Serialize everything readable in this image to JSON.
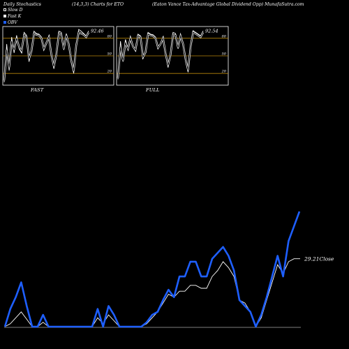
{
  "header": {
    "left": "Daily Stochastics",
    "middle": "(14,3,3) Charts for ETO",
    "right": "(Eaton Vance Tax-Advantage Global Dividend Opp) MunafaSutra.com"
  },
  "legend": [
    {
      "label": "Slow D",
      "color": "#ffffff",
      "style": "hollow"
    },
    {
      "label": "Fast K",
      "color": "#ffffff",
      "style": "solid"
    },
    {
      "label": "OBV",
      "color": "#1e5fff",
      "style": "solid"
    }
  ],
  "colors": {
    "background": "#000000",
    "obv": "#1e5fff",
    "close": "#ffffff",
    "guide": "#b8860b"
  },
  "chart_data": [
    {
      "type": "line",
      "name": "FAST",
      "title": "FAST",
      "last_value": "92.46",
      "ylim": [
        0,
        100
      ],
      "levels": [
        20,
        50,
        80
      ],
      "level_labels": [
        "20",
        "50",
        "80"
      ],
      "series": [
        {
          "name": "Fast K",
          "values": [
            5,
            70,
            25,
            82,
            55,
            85,
            62,
            55,
            90,
            85,
            40,
            60,
            92,
            88,
            87,
            82,
            60,
            70,
            85,
            50,
            28,
            55,
            92,
            90,
            60,
            88,
            72,
            38,
            20,
            70,
            95,
            92,
            88,
            84,
            92.46
          ]
        },
        {
          "name": "Slow D",
          "values": [
            8,
            60,
            30,
            75,
            60,
            80,
            65,
            58,
            85,
            82,
            45,
            58,
            88,
            86,
            85,
            80,
            62,
            72,
            82,
            52,
            32,
            52,
            88,
            86,
            62,
            85,
            70,
            42,
            24,
            68,
            90,
            88,
            86,
            82,
            90
          ]
        }
      ]
    },
    {
      "type": "line",
      "name": "FULL",
      "title": "FULL",
      "last_value": "92.54",
      "ylim": [
        0,
        100
      ],
      "levels": [
        20,
        50,
        80
      ],
      "level_labels": [
        "20",
        "50",
        "80"
      ],
      "series": [
        {
          "name": "Fast K",
          "values": [
            10,
            75,
            40,
            78,
            60,
            83,
            65,
            58,
            87,
            84,
            45,
            58,
            90,
            87,
            86,
            82,
            62,
            70,
            83,
            52,
            30,
            55,
            90,
            88,
            62,
            86,
            72,
            40,
            22,
            68,
            93,
            90,
            87,
            84,
            92.54
          ]
        },
        {
          "name": "Slow D",
          "values": [
            12,
            65,
            42,
            72,
            62,
            80,
            66,
            60,
            84,
            82,
            48,
            56,
            87,
            85,
            84,
            80,
            64,
            70,
            80,
            54,
            34,
            52,
            86,
            85,
            64,
            84,
            70,
            44,
            26,
            66,
            90,
            88,
            85,
            82,
            90
          ]
        }
      ]
    },
    {
      "type": "line",
      "name": "OBV",
      "close_label": "29.21Close",
      "series": [
        {
          "name": "OBV",
          "values": [
            0,
            12,
            20,
            30,
            14,
            0,
            0,
            8,
            0,
            0,
            0,
            0,
            0,
            0,
            0,
            0,
            0,
            12,
            0,
            14,
            8,
            0,
            0,
            0,
            0,
            0,
            3,
            8,
            10,
            18,
            25,
            20,
            34,
            34,
            44,
            44,
            34,
            34,
            46,
            50,
            54,
            48,
            38,
            18,
            14,
            10,
            0,
            8,
            20,
            34,
            48,
            34,
            58,
            68,
            78
          ]
        },
        {
          "name": "Close",
          "values": [
            0,
            2,
            6,
            10,
            5,
            0,
            0,
            3,
            0,
            0,
            0,
            0,
            0,
            0,
            0,
            0,
            0,
            6,
            2,
            8,
            4,
            0,
            0,
            0,
            0,
            0,
            2,
            6,
            10,
            16,
            22,
            20,
            24,
            24,
            28,
            28,
            26,
            26,
            34,
            38,
            44,
            40,
            34,
            18,
            16,
            10,
            0,
            6,
            18,
            30,
            42,
            36,
            44,
            46,
            46
          ]
        }
      ],
      "close": 29.21
    }
  ]
}
